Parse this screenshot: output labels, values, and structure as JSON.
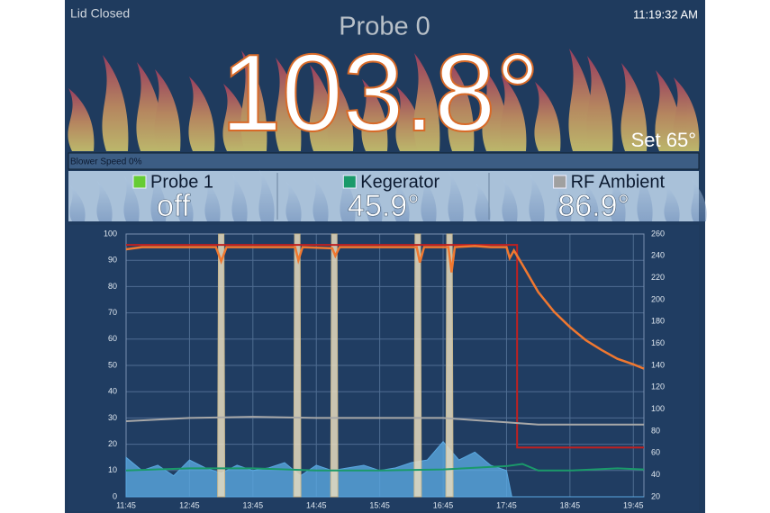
{
  "header": {
    "status": "Lid Closed",
    "title": "Probe 0",
    "temperature": "103.8°",
    "time": "11:19:32 AM",
    "setpoint": "Set 65°",
    "blower": "Blower Speed 0%"
  },
  "probes": [
    {
      "name": "Probe 1",
      "value": "off",
      "color": "#66cc33"
    },
    {
      "name": "Kegerator",
      "value": "45.9°",
      "color": "#1a9a6a"
    },
    {
      "name": "RF Ambient",
      "value": "86.9°",
      "color": "#a0a0a0"
    }
  ],
  "chart_data": {
    "type": "line",
    "xlim": [
      "11:45",
      "19:55"
    ],
    "xticks": [
      "11:45",
      "12:45",
      "13:45",
      "14:45",
      "15:45",
      "16:45",
      "17:45",
      "18:45",
      "19:45"
    ],
    "ylim": [
      0,
      100
    ],
    "yticks": [
      0,
      10,
      20,
      30,
      40,
      50,
      60,
      70,
      80,
      90,
      100
    ],
    "y2lim": [
      20,
      260
    ],
    "y2ticks": [
      20,
      40,
      60,
      80,
      100,
      120,
      140,
      160,
      180,
      200,
      220,
      240,
      260
    ],
    "grid": true,
    "series": [
      {
        "type": "area",
        "color": "#5aa8e0",
        "x": [
          "11:45",
          "12:00",
          "12:15",
          "12:30",
          "12:45",
          "13:00",
          "13:15",
          "13:30",
          "13:45",
          "14:00",
          "14:15",
          "14:30",
          "14:45",
          "15:00",
          "15:15",
          "15:30",
          "15:45",
          "16:00",
          "16:15",
          "16:30",
          "16:45",
          "17:00",
          "17:15",
          "17:30",
          "17:45",
          "17:50",
          "19:55"
        ],
        "values": [
          15,
          10,
          12,
          8,
          14,
          11,
          9,
          12,
          10,
          11,
          13,
          8,
          12,
          10,
          11,
          12,
          10,
          11,
          13,
          14,
          21,
          14,
          17,
          12,
          10,
          0,
          0
        ]
      },
      {
        "type": "bar",
        "color": "#e8dcc0",
        "x": [
          "13:15",
          "14:27",
          "15:02",
          "16:21",
          "16:51"
        ],
        "values": [
          100,
          100,
          100,
          100,
          100
        ]
      },
      {
        "type": "line",
        "color": "#c02020",
        "axis": "y2",
        "x": [
          "11:45",
          "17:55",
          "17:55",
          "19:55"
        ],
        "values": [
          250,
          250,
          65,
          65
        ]
      },
      {
        "type": "line",
        "color": "#a8a8a8",
        "axis": "y2",
        "x": [
          "11:45",
          "12:45",
          "13:45",
          "14:45",
          "15:45",
          "16:45",
          "17:15",
          "17:45",
          "18:15",
          "19:00",
          "19:55"
        ],
        "values": [
          89,
          92,
          93,
          92,
          92,
          92,
          90,
          88,
          86,
          86,
          86
        ]
      },
      {
        "type": "line",
        "color": "#1a9a6a",
        "axis": "y2",
        "x": [
          "11:45",
          "12:45",
          "13:45",
          "14:45",
          "15:45",
          "16:45",
          "17:45",
          "18:00",
          "18:15",
          "18:45",
          "19:30",
          "19:55"
        ],
        "values": [
          44,
          46,
          46,
          44,
          44,
          45,
          48,
          50,
          44,
          44,
          46,
          45
        ]
      },
      {
        "type": "line",
        "color": "#f07830",
        "axis": "y2",
        "x": [
          "11:45",
          "12:00",
          "12:15",
          "12:30",
          "12:45",
          "13:00",
          "13:10",
          "13:15",
          "13:20",
          "13:45",
          "14:15",
          "14:25",
          "14:28",
          "14:32",
          "15:00",
          "15:03",
          "15:07",
          "15:30",
          "16:00",
          "16:15",
          "16:20",
          "16:23",
          "16:27",
          "16:45",
          "16:50",
          "16:53",
          "16:56",
          "17:15",
          "17:30",
          "17:45",
          "17:48",
          "17:52",
          "18:00",
          "18:15",
          "18:30",
          "18:45",
          "19:00",
          "19:15",
          "19:30",
          "19:45",
          "19:55"
        ],
        "values": [
          246,
          248,
          248,
          248,
          248,
          248,
          248,
          235,
          248,
          248,
          248,
          248,
          236,
          248,
          247,
          240,
          248,
          248,
          248,
          248,
          248,
          234,
          248,
          248,
          248,
          225,
          248,
          249,
          248,
          248,
          238,
          245,
          232,
          207,
          189,
          175,
          163,
          154,
          146,
          141,
          137
        ]
      }
    ]
  }
}
